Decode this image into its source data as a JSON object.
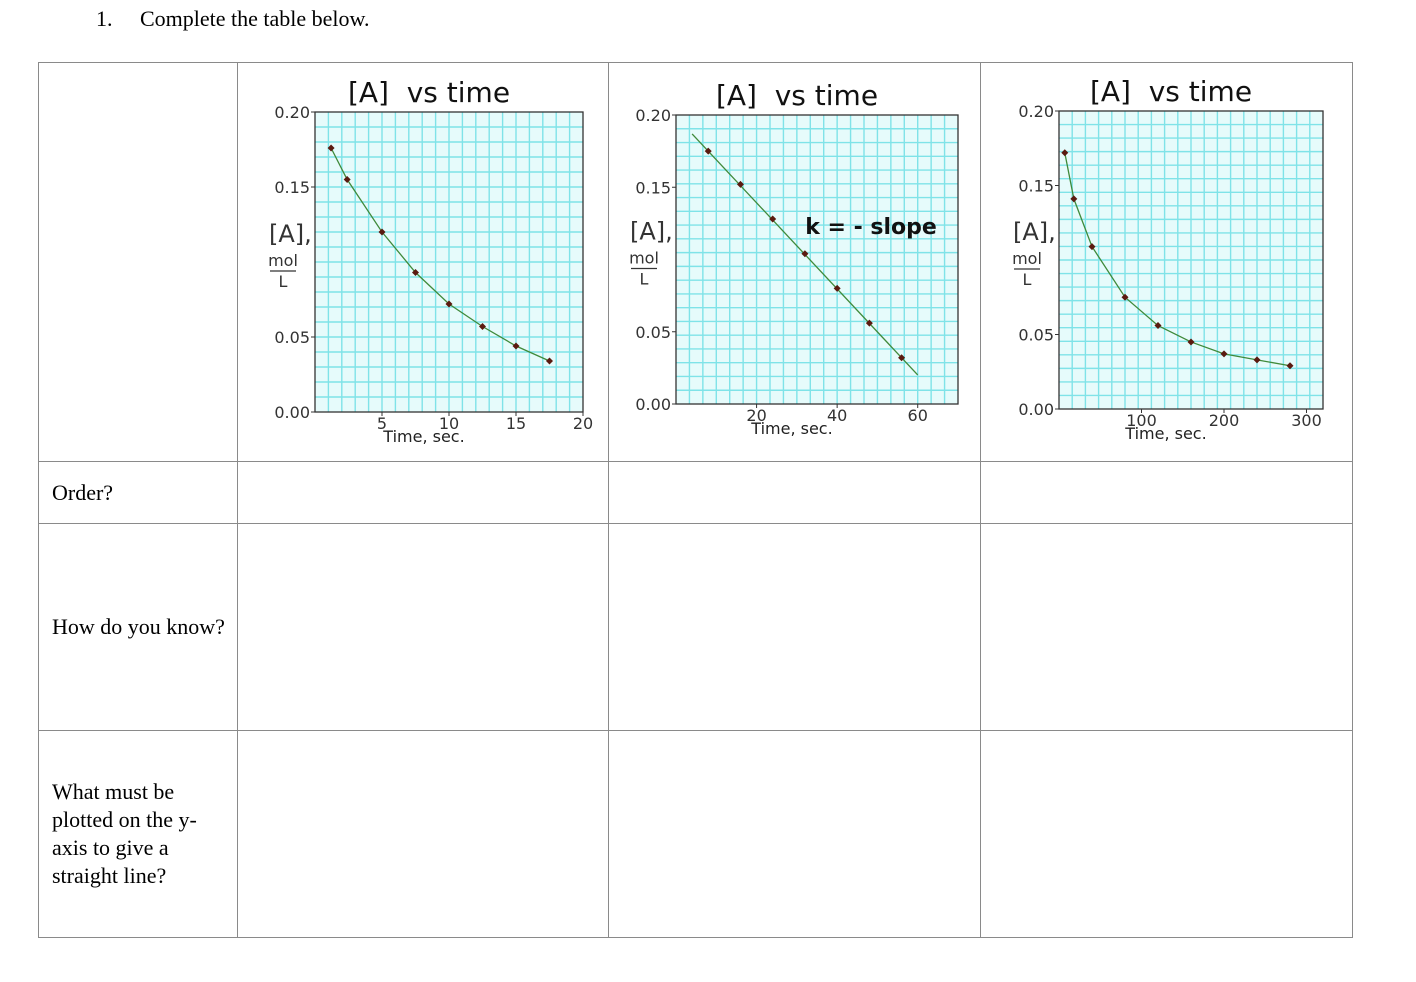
{
  "question": {
    "number": "1.",
    "text": "Complete the table below."
  },
  "rows": [
    {
      "label": "Order?"
    },
    {
      "label": "How do you know?"
    },
    {
      "label": "What must be plotted on the y-axis to give a straight line?"
    }
  ],
  "colors": {
    "grid": "#7fe3e8",
    "plot_bg": "#e6fbfb",
    "curve": "#3f8a3a",
    "marker": "#5a1a10",
    "border": "#8a8a8a"
  },
  "chart_data": [
    {
      "type": "line",
      "title": "[A]  vs time",
      "xlabel": "Time, sec.",
      "ylabel": "[A],",
      "ylabel_units_num": "mol",
      "ylabel_units_den": "L",
      "xlim": [
        0,
        20
      ],
      "ylim": [
        0,
        0.2
      ],
      "x_ticks": [
        "5",
        "10",
        "15",
        "20"
      ],
      "y_ticks": [
        "0.20",
        "0.15",
        "0.05",
        "0.00"
      ],
      "annotation": "",
      "x": [
        1.2,
        2.4,
        5.0,
        7.5,
        10.0,
        12.5,
        15.0,
        17.5
      ],
      "y": [
        0.176,
        0.155,
        0.12,
        0.093,
        0.072,
        0.057,
        0.044,
        0.034
      ]
    },
    {
      "type": "line",
      "title": "[A]  vs time",
      "xlabel": "Time, sec.",
      "ylabel": "[A],",
      "ylabel_units_num": "mol",
      "ylabel_units_den": "L",
      "xlim": [
        0,
        70
      ],
      "ylim": [
        0,
        0.2
      ],
      "x_ticks": [
        "20",
        "40",
        "60"
      ],
      "y_ticks": [
        "0.20",
        "0.15",
        "0.05",
        "0.00"
      ],
      "annotation": "k = - slope",
      "x": [
        8,
        16,
        24,
        32,
        40,
        48,
        56
      ],
      "y": [
        0.175,
        0.152,
        0.128,
        0.104,
        0.08,
        0.056,
        0.032
      ]
    },
    {
      "type": "line",
      "title": "[A]  vs time",
      "xlabel": "Time, sec.",
      "ylabel": "[A],",
      "ylabel_units_num": "mol",
      "ylabel_units_den": "L",
      "xlim": [
        0,
        320
      ],
      "ylim": [
        0,
        0.2
      ],
      "x_ticks": [
        "100",
        "200",
        "300"
      ],
      "y_ticks": [
        "0.20",
        "0.15",
        "0.05",
        "0.00"
      ],
      "annotation": "",
      "x": [
        7,
        18,
        40,
        80,
        120,
        160,
        200,
        240,
        280
      ],
      "y": [
        0.172,
        0.141,
        0.109,
        0.075,
        0.056,
        0.045,
        0.037,
        0.033,
        0.029
      ]
    }
  ]
}
